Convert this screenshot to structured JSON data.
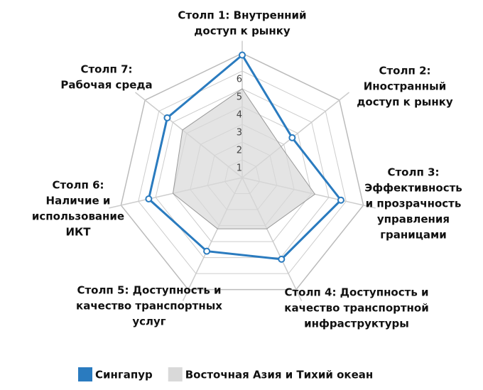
{
  "chart_data": {
    "type": "radar",
    "categories": [
      [
        "Столп 1: Внутренний",
        "доступ к рынку"
      ],
      [
        "Столп 2:",
        "Иностранный",
        "доступ к рынку"
      ],
      [
        "Столп 3:",
        "Эффективность",
        "и прозрачность",
        "управления",
        "границами"
      ],
      [
        "Столп 4: Доступность и",
        "качество транспортной",
        "инфраструктуры"
      ],
      [
        "Столп 5: Доступность и",
        "качество транспортных",
        "услуг"
      ],
      [
        "Столп 6:",
        "Наличие и",
        "использование",
        "ИКТ"
      ],
      [
        "Столп 7:",
        "Рабочая среда"
      ]
    ],
    "series": [
      {
        "name": "Сингапур",
        "color": "#2a7bbf",
        "values": [
          6.9,
          3.6,
          5.7,
          5.1,
          4.6,
          5.4,
          5.4
        ]
      },
      {
        "name": "Восточная Азия и Тихий океан",
        "color": "#d9d9d9",
        "values": [
          5.0,
          2.8,
          4.2,
          3.2,
          3.2,
          4.0,
          4.3
        ]
      }
    ],
    "ylim": [
      0,
      7
    ],
    "yticks": [
      1,
      2,
      3,
      4,
      5,
      6
    ],
    "grid": true
  }
}
